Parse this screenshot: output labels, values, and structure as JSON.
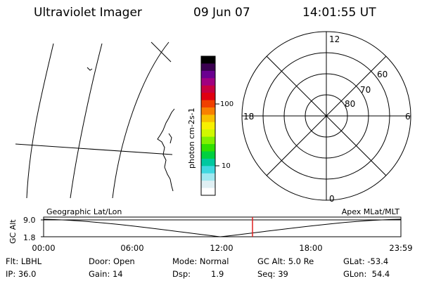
{
  "header": {
    "title": "Ultraviolet Imager",
    "date": "09 Jun 07",
    "time": "14:01:55 UT"
  },
  "colorbar": {
    "label": "photon cm-2s-1",
    "ticks": [
      "100",
      "10"
    ],
    "colors": [
      "#000000",
      "#3a0050",
      "#6a0090",
      "#a00080",
      "#c80040",
      "#e00010",
      "#f04000",
      "#f88000",
      "#f8c000",
      "#f8f000",
      "#d0f800",
      "#80f000",
      "#30e000",
      "#00d040",
      "#00c8a0",
      "#40d8e0",
      "#a0e8f0",
      "#e0f0f4",
      "#ffffff"
    ]
  },
  "polar": {
    "clock_labels": {
      "top": "12",
      "bottom": "0",
      "left": "18",
      "right": "6"
    },
    "lat_labels": [
      "60",
      "70",
      "80"
    ]
  },
  "timeline": {
    "axis_label": "GC Alt",
    "y_ticks": [
      "9.0",
      "1.8"
    ],
    "left_label": "Geographic Lat/Lon",
    "right_label": "Apex MLat/MLT",
    "x_ticks": [
      "00:00",
      "06:00",
      "12:00",
      "18:00",
      "23:59"
    ],
    "current_marker_color": "#e02020"
  },
  "info": {
    "flt": "Flt: LBHL",
    "ip": "IP: 36.0",
    "door": "Door: Open",
    "gain": "Gain: 14",
    "mode": "Mode: Normal",
    "dsp_label": "Dsp:",
    "dsp_value": "1.9",
    "gcalt": "GC Alt: 5.0 Re",
    "seq": "Seq: 39",
    "glat": "GLat: -53.4",
    "glon": "GLon:  54.4"
  }
}
